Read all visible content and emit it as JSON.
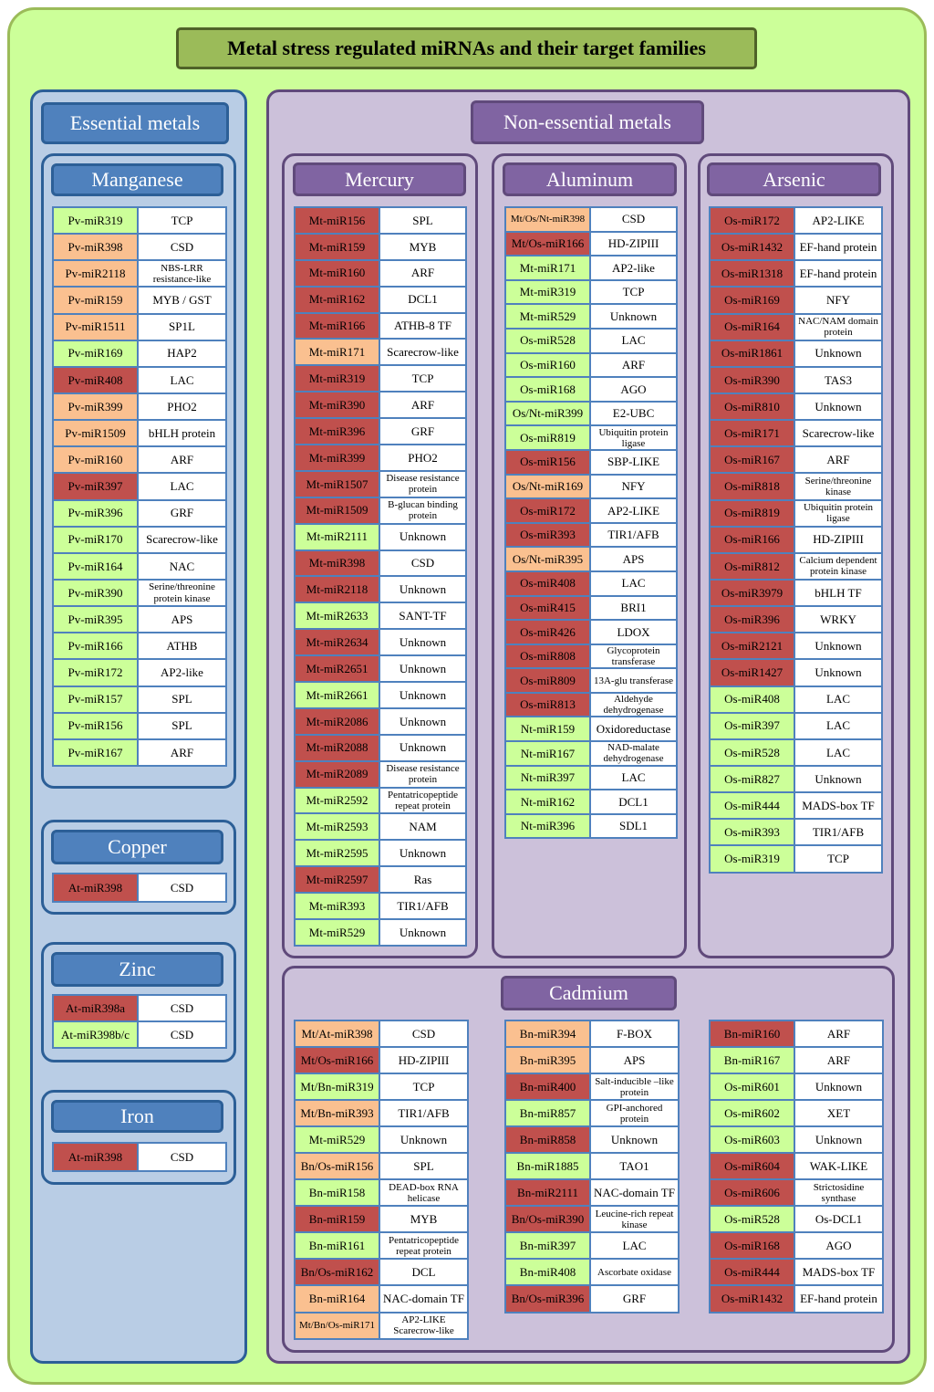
{
  "title": "Metal stress regulated miRNAs and their target families",
  "colors": {
    "green": "#ccff99",
    "orange": "#fac090",
    "red": "#c0504d"
  },
  "essential": {
    "label": "Essential metals",
    "manganese": {
      "label": "Manganese",
      "rows": [
        {
          "mirna": "Pv-miR319",
          "target": "TCP",
          "c": "g"
        },
        {
          "mirna": "Pv-miR398",
          "target": "CSD",
          "c": "o"
        },
        {
          "mirna": "Pv-miR2118",
          "target": "NBS-LRR resistance-like",
          "c": "o"
        },
        {
          "mirna": "Pv-miR159",
          "target": "MYB / GST",
          "c": "o"
        },
        {
          "mirna": "Pv-miR1511",
          "target": "SP1L",
          "c": "o"
        },
        {
          "mirna": "Pv-miR169",
          "target": "HAP2",
          "c": "g"
        },
        {
          "mirna": "Pv-miR408",
          "target": "LAC",
          "c": "r"
        },
        {
          "mirna": "Pv-miR399",
          "target": "PHO2",
          "c": "o"
        },
        {
          "mirna": "Pv-miR1509",
          "target": "bHLH protein",
          "c": "o"
        },
        {
          "mirna": "Pv-miR160",
          "target": "ARF",
          "c": "o"
        },
        {
          "mirna": "Pv-miR397",
          "target": "LAC",
          "c": "r"
        },
        {
          "mirna": "Pv-miR396",
          "target": "GRF",
          "c": "g"
        },
        {
          "mirna": "Pv-miR170",
          "target": "Scarecrow-like",
          "c": "g"
        },
        {
          "mirna": "Pv-miR164",
          "target": "NAC",
          "c": "g"
        },
        {
          "mirna": "Pv-miR390",
          "target": "Serine/threonine protein kinase",
          "c": "g"
        },
        {
          "mirna": "Pv-miR395",
          "target": "APS",
          "c": "g"
        },
        {
          "mirna": "Pv-miR166",
          "target": "ATHB",
          "c": "g"
        },
        {
          "mirna": "Pv-miR172",
          "target": "AP2-like",
          "c": "g"
        },
        {
          "mirna": "Pv-miR157",
          "target": "SPL",
          "c": "g"
        },
        {
          "mirna": "Pv-miR156",
          "target": "SPL",
          "c": "g"
        },
        {
          "mirna": "Pv-miR167",
          "target": "ARF",
          "c": "g"
        }
      ]
    },
    "copper": {
      "label": "Copper",
      "rows": [
        {
          "mirna": "At-miR398",
          "target": "CSD",
          "c": "r"
        }
      ]
    },
    "zinc": {
      "label": "Zinc",
      "rows": [
        {
          "mirna": "At-miR398a",
          "target": "CSD",
          "c": "r"
        },
        {
          "mirna": "At-miR398b/c",
          "target": "CSD",
          "c": "g"
        }
      ]
    },
    "iron": {
      "label": "Iron",
      "rows": [
        {
          "mirna": "At-miR398",
          "target": "CSD",
          "c": "r"
        }
      ]
    }
  },
  "nonessential": {
    "label": "Non-essential metals",
    "mercury": {
      "label": "Mercury",
      "rows": [
        {
          "mirna": "Mt-miR156",
          "target": "SPL",
          "c": "r"
        },
        {
          "mirna": "Mt-miR159",
          "target": "MYB",
          "c": "r"
        },
        {
          "mirna": "Mt-miR160",
          "target": "ARF",
          "c": "r"
        },
        {
          "mirna": "Mt-miR162",
          "target": "DCL1",
          "c": "r"
        },
        {
          "mirna": "Mt-miR166",
          "target": "ATHB-8 TF",
          "c": "r"
        },
        {
          "mirna": "Mt-miR171",
          "target": "Scarecrow-like",
          "c": "o"
        },
        {
          "mirna": "Mt-miR319",
          "target": "TCP",
          "c": "r"
        },
        {
          "mirna": "Mt-miR390",
          "target": "ARF",
          "c": "r"
        },
        {
          "mirna": "Mt-miR396",
          "target": "GRF",
          "c": "r"
        },
        {
          "mirna": "Mt-miR399",
          "target": "PHO2",
          "c": "r"
        },
        {
          "mirna": "Mt-miR1507",
          "target": "Disease resistance protein",
          "c": "r"
        },
        {
          "mirna": "Mt-miR1509",
          "target": "B-glucan binding protein",
          "c": "r"
        },
        {
          "mirna": "Mt-miR2111",
          "target": "Unknown",
          "c": "g"
        },
        {
          "mirna": "Mt-miR398",
          "target": "CSD",
          "c": "r"
        },
        {
          "mirna": "Mt-miR2118",
          "target": "Unknown",
          "c": "r"
        },
        {
          "mirna": "Mt-miR2633",
          "target": "SANT-TF",
          "c": "g"
        },
        {
          "mirna": "Mt-miR2634",
          "target": "Unknown",
          "c": "r"
        },
        {
          "mirna": "Mt-miR2651",
          "target": "Unknown",
          "c": "r"
        },
        {
          "mirna": "Mt-miR2661",
          "target": "Unknown",
          "c": "g"
        },
        {
          "mirna": "Mt-miR2086",
          "target": "Unknown",
          "c": "r"
        },
        {
          "mirna": "Mt-miR2088",
          "target": "Unknown",
          "c": "r"
        },
        {
          "mirna": "Mt-miR2089",
          "target": "Disease resistance protein",
          "c": "r"
        },
        {
          "mirna": "Mt-miR2592",
          "target": "Pentatricopeptide repeat protein",
          "c": "g"
        },
        {
          "mirna": "Mt-miR2593",
          "target": "NAM",
          "c": "g"
        },
        {
          "mirna": "Mt-miR2595",
          "target": "Unknown",
          "c": "g"
        },
        {
          "mirna": "Mt-miR2597",
          "target": "Ras",
          "c": "r"
        },
        {
          "mirna": "Mt-miR393",
          "target": "TIR1/AFB",
          "c": "g"
        },
        {
          "mirna": "Mt-miR529",
          "target": "Unknown",
          "c": "g"
        }
      ]
    },
    "aluminum": {
      "label": "Aluminum",
      "rows": [
        {
          "mirna": "Mt/Os/Nt-miR398",
          "target": "CSD",
          "c": "o"
        },
        {
          "mirna": "Mt/Os-miR166",
          "target": "HD-ZIPIII",
          "c": "r"
        },
        {
          "mirna": "Mt-miR171",
          "target": "AP2-like",
          "c": "g"
        },
        {
          "mirna": "Mt-miR319",
          "target": "TCP",
          "c": "g"
        },
        {
          "mirna": "Mt-miR529",
          "target": "Unknown",
          "c": "g"
        },
        {
          "mirna": "Os-miR528",
          "target": "LAC",
          "c": "g"
        },
        {
          "mirna": "Os-miR160",
          "target": "ARF",
          "c": "g"
        },
        {
          "mirna": "Os-miR168",
          "target": "AGO",
          "c": "g"
        },
        {
          "mirna": "Os/Nt-miR399",
          "target": "E2-UBC",
          "c": "g"
        },
        {
          "mirna": "Os-miR819",
          "target": "Ubiquitin protein ligase",
          "c": "g"
        },
        {
          "mirna": "Os-miR156",
          "target": "SBP-LIKE",
          "c": "r"
        },
        {
          "mirna": "Os/Nt-miR169",
          "target": "NFY",
          "c": "o"
        },
        {
          "mirna": "Os-miR172",
          "target": "AP2-LIKE",
          "c": "r"
        },
        {
          "mirna": "Os-miR393",
          "target": "TIR1/AFB",
          "c": "r"
        },
        {
          "mirna": "Os/Nt-miR395",
          "target": "APS",
          "c": "o"
        },
        {
          "mirna": "Os-miR408",
          "target": "LAC",
          "c": "r"
        },
        {
          "mirna": "Os-miR415",
          "target": "BRI1",
          "c": "r"
        },
        {
          "mirna": "Os-miR426",
          "target": "LDOX",
          "c": "r"
        },
        {
          "mirna": "Os-miR808",
          "target": "Glycoprotein transferase",
          "c": "r"
        },
        {
          "mirna": "Os-miR809",
          "target": "13A-glu transferase",
          "c": "r"
        },
        {
          "mirna": "Os-miR813",
          "target": "Aldehyde dehydrogenase",
          "c": "r"
        },
        {
          "mirna": "Nt-miR159",
          "target": "Oxidoreductase",
          "c": "g"
        },
        {
          "mirna": "Nt-miR167",
          "target": "NAD-malate dehydrogenase",
          "c": "g"
        },
        {
          "mirna": "Nt-miR397",
          "target": "LAC",
          "c": "g"
        },
        {
          "mirna": "Nt-miR162",
          "target": "DCL1",
          "c": "g"
        },
        {
          "mirna": "Nt-miR396",
          "target": "SDL1",
          "c": "g"
        }
      ]
    },
    "arsenic": {
      "label": "Arsenic",
      "rows": [
        {
          "mirna": "Os-miR172",
          "target": "AP2-LIKE",
          "c": "r"
        },
        {
          "mirna": "Os-miR1432",
          "target": "EF-hand protein",
          "c": "r"
        },
        {
          "mirna": "Os-miR1318",
          "target": "EF-hand protein",
          "c": "r"
        },
        {
          "mirna": "Os-miR169",
          "target": "NFY",
          "c": "r"
        },
        {
          "mirna": "Os-miR164",
          "target": "NAC/NAM domain protein",
          "c": "r"
        },
        {
          "mirna": "Os-miR1861",
          "target": "Unknown",
          "c": "r"
        },
        {
          "mirna": "Os-miR390",
          "target": "TAS3",
          "c": "r"
        },
        {
          "mirna": "Os-miR810",
          "target": "Unknown",
          "c": "r"
        },
        {
          "mirna": "Os-miR171",
          "target": "Scarecrow-like",
          "c": "r"
        },
        {
          "mirna": "Os-miR167",
          "target": "ARF",
          "c": "r"
        },
        {
          "mirna": "Os-miR818",
          "target": "Serine/threonine kinase",
          "c": "r"
        },
        {
          "mirna": "Os-miR819",
          "target": "Ubiquitin protein ligase",
          "c": "r"
        },
        {
          "mirna": "Os-miR166",
          "target": "HD-ZIPIII",
          "c": "r"
        },
        {
          "mirna": "Os-miR812",
          "target": "Calcium dependent protein kinase",
          "c": "r"
        },
        {
          "mirna": "Os-miR3979",
          "target": "bHLH TF",
          "c": "r"
        },
        {
          "mirna": "Os-miR396",
          "target": "WRKY",
          "c": "r"
        },
        {
          "mirna": "Os-miR2121",
          "target": "Unknown",
          "c": "r"
        },
        {
          "mirna": "Os-miR1427",
          "target": "Unknown",
          "c": "r"
        },
        {
          "mirna": "Os-miR408",
          "target": "LAC",
          "c": "g"
        },
        {
          "mirna": "Os-miR397",
          "target": "LAC",
          "c": "g"
        },
        {
          "mirna": "Os-miR528",
          "target": "LAC",
          "c": "g"
        },
        {
          "mirna": "Os-miR827",
          "target": "Unknown",
          "c": "g"
        },
        {
          "mirna": "Os-miR444",
          "target": "MADS-box TF",
          "c": "g"
        },
        {
          "mirna": "Os-miR393",
          "target": "TIR1/AFB",
          "c": "g"
        },
        {
          "mirna": "Os-miR319",
          "target": "TCP",
          "c": "g"
        }
      ]
    },
    "cadmium": {
      "label": "Cadmium",
      "col1": [
        {
          "mirna": "Mt/At-miR398",
          "target": "CSD",
          "c": "o"
        },
        {
          "mirna": "Mt/Os-miR166",
          "target": "HD-ZIPIII",
          "c": "r"
        },
        {
          "mirna": "Mt/Bn-miR319",
          "target": "TCP",
          "c": "g"
        },
        {
          "mirna": "Mt/Bn-miR393",
          "target": "TIR1/AFB",
          "c": "o"
        },
        {
          "mirna": "Mt-miR529",
          "target": "Unknown",
          "c": "g"
        },
        {
          "mirna": "Bn/Os-miR156",
          "target": "SPL",
          "c": "o"
        },
        {
          "mirna": "Bn-miR158",
          "target": "DEAD-box RNA helicase",
          "c": "g"
        },
        {
          "mirna": "Bn-miR159",
          "target": "MYB",
          "c": "r"
        },
        {
          "mirna": "Bn-miR161",
          "target": "Pentatricopeptide repeat protein",
          "c": "g"
        },
        {
          "mirna": "Bn/Os-miR162",
          "target": "DCL",
          "c": "r"
        },
        {
          "mirna": "Bn-miR164",
          "target": "NAC-domain TF",
          "c": "o"
        },
        {
          "mirna": "Mt/Bn/Os-miR171",
          "target": "AP2-LIKE Scarecrow-like",
          "c": "o"
        }
      ],
      "col2": [
        {
          "mirna": "Bn-miR394",
          "target": "F-BOX",
          "c": "o"
        },
        {
          "mirna": "Bn-miR395",
          "target": "APS",
          "c": "o"
        },
        {
          "mirna": "Bn-miR400",
          "target": "Salt-inducible –like protein",
          "c": "r"
        },
        {
          "mirna": "Bn-miR857",
          "target": "GPI-anchored protein",
          "c": "g"
        },
        {
          "mirna": "Bn-miR858",
          "target": "Unknown",
          "c": "r"
        },
        {
          "mirna": "Bn-miR1885",
          "target": "TAO1",
          "c": "g"
        },
        {
          "mirna": "Bn-miR2111",
          "target": "NAC-domain TF",
          "c": "r"
        },
        {
          "mirna": "Bn/Os-miR390",
          "target": "Leucine-rich repeat kinase",
          "c": "r"
        },
        {
          "mirna": "Bn-miR397",
          "target": "LAC",
          "c": "g"
        },
        {
          "mirna": "Bn-miR408",
          "target": "Ascorbate oxidase",
          "c": "g"
        },
        {
          "mirna": "Bn/Os-miR396",
          "target": "GRF",
          "c": "r"
        }
      ],
      "col3": [
        {
          "mirna": "Bn-miR160",
          "target": "ARF",
          "c": "r"
        },
        {
          "mirna": "Bn-miR167",
          "target": "ARF",
          "c": "g"
        },
        {
          "mirna": "Os-miR601",
          "target": "Unknown",
          "c": "g"
        },
        {
          "mirna": "Os-miR602",
          "target": "XET",
          "c": "g"
        },
        {
          "mirna": "Os-miR603",
          "target": "Unknown",
          "c": "g"
        },
        {
          "mirna": "Os-miR604",
          "target": "WAK-LIKE",
          "c": "r"
        },
        {
          "mirna": "Os-miR606",
          "target": "Strictosidine synthase",
          "c": "r"
        },
        {
          "mirna": "Os-miR528",
          "target": "Os-DCL1",
          "c": "g"
        },
        {
          "mirna": "Os-miR168",
          "target": "AGO",
          "c": "r"
        },
        {
          "mirna": "Os-miR444",
          "target": "MADS-box TF",
          "c": "r"
        },
        {
          "mirna": "Os-miR1432",
          "target": "EF-hand protein",
          "c": "r"
        }
      ]
    }
  }
}
